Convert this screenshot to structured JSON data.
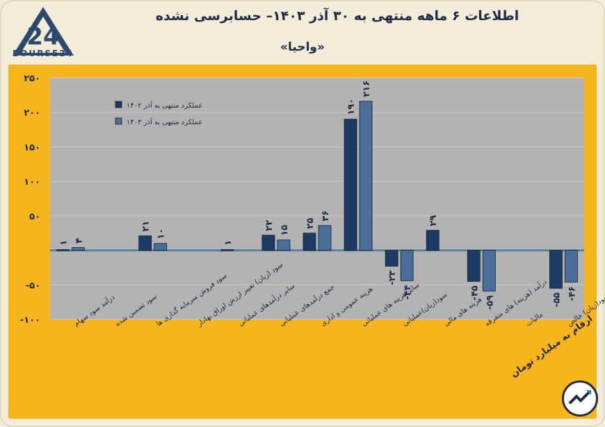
{
  "header": {
    "title": "اطلاعات ۶ ماهه منتهی به ۳۰ آذر ۱۴۰۳– حسابرسی نشده",
    "subtitle": "«واحیا»",
    "logo_text": "BOURSE24",
    "units_note": "ارقام به میلیارد تومان"
  },
  "chart_data": {
    "type": "bar",
    "categories": [
      "درآمد سود سهام",
      "سود تضمین شده",
      "سود فروش سرمایه گذاری ها",
      "سود (زیان) تغییر ارزش اوراق بهادار",
      "سایر درآمدهای عملیاتی",
      "جمع درآمدهای عملیاتی",
      "هزینه عمومی و اداری",
      "سایر هزینه های عملیاتی",
      "سود(زیان)عملیاتی",
      "هزینه های مالی",
      "درآمد (هزینه) های متفرقه",
      "مالیات",
      "سود(زیان) خالص"
    ],
    "series": [
      {
        "name": "عملکرد منتهی به آذر ۱۴۰۲",
        "values": [
          1,
          null,
          21,
          null,
          1,
          22,
          25,
          190,
          -23,
          29,
          -45,
          null,
          -55
        ],
        "labels": [
          "۱",
          "",
          "۲۱",
          "",
          "۱",
          "۲۲",
          "۲۵",
          "۱۹۰",
          "-۲۳",
          "۲۹",
          "-۴۵",
          "",
          "-۵۵"
        ],
        "color": "#1c3a63"
      },
      {
        "name": "عملکرد منتهی به آذر ۱۴۰۳",
        "values": [
          4,
          null,
          10,
          null,
          null,
          15,
          36,
          216,
          -44,
          null,
          -59,
          null,
          -46
        ],
        "labels": [
          "۴",
          "",
          "۱۰",
          "",
          "",
          "۱۵",
          "۳۶",
          "۲۱۶",
          "-۴۴",
          "",
          "-۵۹",
          "",
          "-۴۶"
        ],
        "color": "#4a6e97"
      }
    ],
    "yticks": [
      "۲۵۰",
      "۲۰۰",
      "۱۵۰",
      "۱۰۰",
      "۵۰",
      "-۵۰",
      "-۱۰۰"
    ],
    "ytick_values": [
      250,
      200,
      150,
      100,
      50,
      -50,
      -100
    ],
    "ylim": [
      -100,
      250
    ],
    "grid": true,
    "legend_position": "top-left",
    "colors": {
      "panel": "#f6b51c",
      "plot": "#b3b3b3",
      "axis": "#5f7d95"
    }
  }
}
